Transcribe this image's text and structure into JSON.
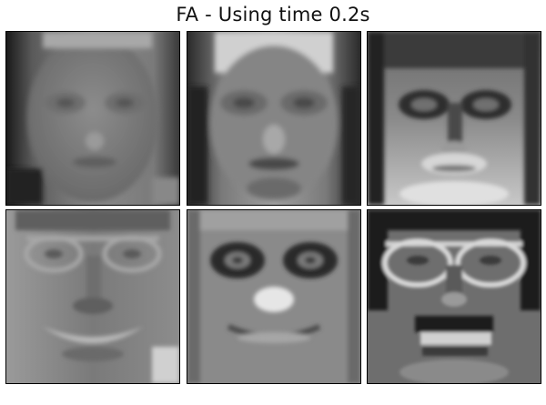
{
  "figure": {
    "title": "FA - Using time 0.2s"
  },
  "components": [
    {
      "tone": "dark-edges-plain-face",
      "glasses": true
    },
    {
      "tone": "dark-sides-bright-forehead",
      "glasses": true
    },
    {
      "tone": "dark-eyes-bright-cheeks",
      "glasses": true
    },
    {
      "tone": "smiling-glasses",
      "glasses": true
    },
    {
      "tone": "dark-eye-sockets-bright-nose",
      "glasses": false
    },
    {
      "tone": "bright-glasses-dark-hair",
      "glasses": true
    }
  ]
}
